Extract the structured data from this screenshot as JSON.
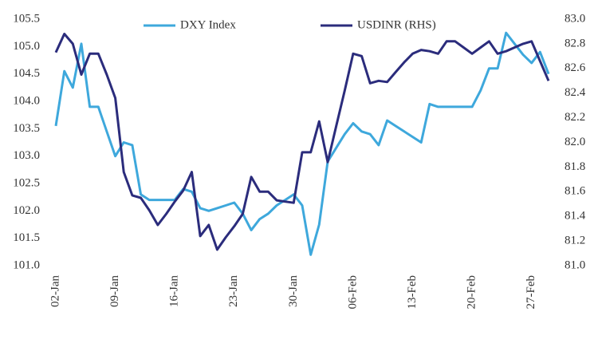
{
  "chart_data": {
    "type": "line",
    "categories": [
      "02-Jan",
      null,
      null,
      null,
      null,
      null,
      null,
      "09-Jan",
      null,
      null,
      null,
      null,
      null,
      null,
      "16-Jan",
      null,
      null,
      null,
      null,
      null,
      null,
      "23-Jan",
      null,
      null,
      null,
      null,
      null,
      null,
      "30-Jan",
      null,
      null,
      null,
      null,
      null,
      null,
      "06-Feb",
      null,
      null,
      null,
      null,
      null,
      null,
      "13-Feb",
      null,
      null,
      null,
      null,
      null,
      null,
      "20-Feb",
      null,
      null,
      null,
      null,
      null,
      null,
      "27-Feb",
      null,
      null
    ],
    "series": [
      {
        "name": "DXY Index",
        "color": "#3ea8dc",
        "axis": "y",
        "values": [
          103.55,
          104.55,
          104.25,
          105.05,
          103.9,
          103.9,
          103.45,
          103.0,
          103.25,
          103.2,
          102.3,
          102.2,
          102.2,
          102.2,
          102.2,
          102.4,
          102.35,
          102.05,
          102.0,
          102.05,
          102.1,
          102.15,
          101.95,
          101.65,
          101.85,
          101.95,
          102.1,
          102.2,
          102.3,
          102.1,
          101.2,
          101.75,
          102.9,
          103.15,
          103.4,
          103.6,
          103.45,
          103.4,
          103.2,
          103.65,
          103.55,
          103.45,
          103.35,
          103.25,
          103.95,
          103.9,
          103.9,
          103.9,
          103.9,
          103.9,
          104.2,
          104.6,
          104.6,
          105.25,
          105.05,
          104.85,
          104.7,
          104.9,
          104.5
        ]
      },
      {
        "name": "USDINR (RHS)",
        "color": "#2b2c7c",
        "axis": "y2",
        "values": [
          82.73,
          82.88,
          82.8,
          82.55,
          82.72,
          82.72,
          82.55,
          82.36,
          81.76,
          81.57,
          81.55,
          81.45,
          81.33,
          81.42,
          81.52,
          81.61,
          81.76,
          81.24,
          81.33,
          81.13,
          81.23,
          81.32,
          81.42,
          81.72,
          81.6,
          81.6,
          81.53,
          81.52,
          81.51,
          81.92,
          81.92,
          82.17,
          81.84,
          82.13,
          82.42,
          82.72,
          82.7,
          82.48,
          82.5,
          82.49,
          82.57,
          82.65,
          82.72,
          82.75,
          82.74,
          82.72,
          82.82,
          82.82,
          82.77,
          82.72,
          82.77,
          82.82,
          82.72,
          82.74,
          82.77,
          82.8,
          82.82,
          82.66,
          82.5
        ]
      }
    ],
    "ylim": [
      101.0,
      105.5
    ],
    "yticks": [
      {
        "value": 101.0,
        "label": "101.0"
      },
      {
        "value": 101.5,
        "label": "101.5"
      },
      {
        "value": 102.0,
        "label": "102.0"
      },
      {
        "value": 102.5,
        "label": "102.5"
      },
      {
        "value": 103.0,
        "label": "103.0"
      },
      {
        "value": 103.5,
        "label": "103.5"
      },
      {
        "value": 104.0,
        "label": "104.0"
      },
      {
        "value": 104.5,
        "label": "104.5"
      },
      {
        "value": 105.0,
        "label": "105.0"
      },
      {
        "value": 105.5,
        "label": "105.5"
      }
    ],
    "y2lim": [
      81.0,
      83.0
    ],
    "y2ticks": [
      {
        "value": 81.0,
        "label": "81.0"
      },
      81.2,
      81.4,
      81.6,
      81.8,
      {
        "value": 82.0,
        "label": "82.0"
      },
      82.2,
      82.4,
      82.6,
      82.8,
      {
        "value": 83.0,
        "label": "83.0"
      }
    ],
    "legend": "top"
  }
}
